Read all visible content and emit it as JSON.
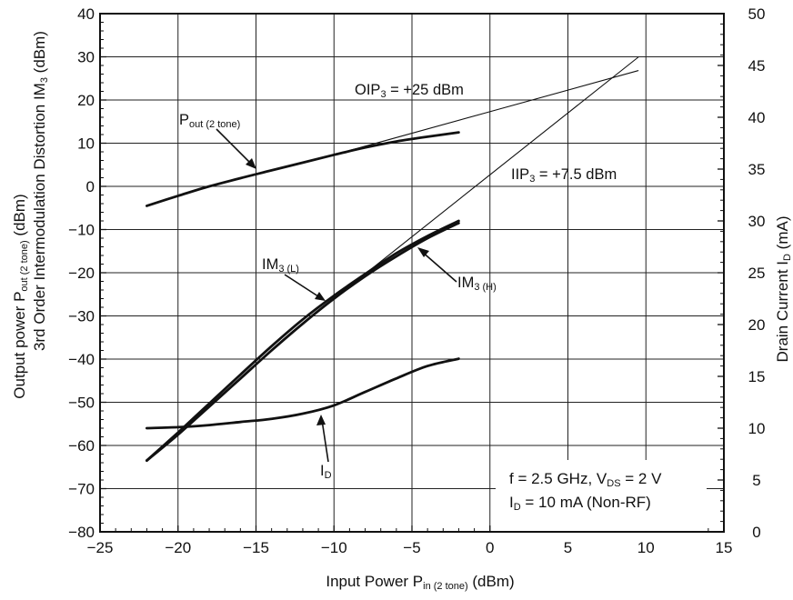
{
  "chart_data": {
    "type": "line",
    "x_axis": {
      "label_main": "Input Power  P",
      "label_sub": "in (2 tone)",
      "label_unit": " (dBm)",
      "range": [
        -25,
        15
      ],
      "ticks": [
        -25,
        -20,
        -15,
        -10,
        -5,
        0,
        5,
        10,
        15
      ],
      "tick_labels": [
        "−25",
        "−20",
        "−15",
        "−10",
        "−5",
        "0",
        "5",
        "10",
        "15"
      ]
    },
    "y_axis_left": {
      "label_line1_main": "Output power  P",
      "label_line1_sub": "out (2 tone)",
      "label_line1_unit": " (dBm)",
      "label_line2_main": "3rd Order Intermodulation Distortion  IM",
      "label_line2_sub": "3",
      "label_line2_unit": " (dBm)",
      "range": [
        -80,
        40
      ],
      "ticks": [
        -80,
        -70,
        -60,
        -50,
        -40,
        -30,
        -20,
        -10,
        0,
        10,
        20,
        30,
        40
      ],
      "tick_labels": [
        "−80",
        "−70",
        "−60",
        "−50",
        "−40",
        "−30",
        "−20",
        "−10",
        "0",
        "10",
        "20",
        "30",
        "40"
      ]
    },
    "y_axis_right": {
      "label_main": "Drain Current  I",
      "label_sub": "D",
      "label_unit": " (mA)",
      "range": [
        0,
        50
      ],
      "ticks": [
        0,
        5,
        10,
        15,
        20,
        25,
        30,
        35,
        40,
        45,
        50
      ],
      "tick_labels": [
        "0",
        "5",
        "10",
        "15",
        "20",
        "25",
        "30",
        "35",
        "40",
        "45",
        "50"
      ]
    },
    "grid": true,
    "series": [
      {
        "name": "Pout (2 tone)",
        "axis": "left",
        "style": "thick",
        "x": [
          -22,
          -20,
          -18,
          -16,
          -14,
          -12,
          -10,
          -8,
          -6,
          -4,
          -2
        ],
        "y": [
          -4.5,
          -2.2,
          0,
          1.9,
          3.7,
          5.5,
          7.3,
          9.0,
          10.4,
          11.5,
          12.5
        ]
      },
      {
        "name": "IM3 (L)",
        "axis": "left",
        "style": "thick",
        "x": [
          -22,
          -20,
          -18,
          -16,
          -14,
          -12,
          -10,
          -8,
          -6,
          -4,
          -2
        ],
        "y": [
          -63.5,
          -57.0,
          -50.3,
          -43.6,
          -37.0,
          -30.8,
          -25.3,
          -20.3,
          -15.5,
          -11.5,
          -8.0
        ]
      },
      {
        "name": "IM3 (H)",
        "axis": "left",
        "style": "thick",
        "x": [
          -22,
          -20,
          -18,
          -16,
          -14,
          -12,
          -10,
          -8,
          -6,
          -4,
          -2
        ],
        "y": [
          -63.5,
          -57.5,
          -51.0,
          -44.5,
          -38.0,
          -31.8,
          -26.0,
          -20.8,
          -16.2,
          -12.0,
          -8.5
        ]
      },
      {
        "name": "ID",
        "axis": "right",
        "style": "thick",
        "x": [
          -22,
          -20,
          -18,
          -16,
          -14,
          -12,
          -10,
          -8,
          -6,
          -4,
          -2
        ],
        "y": [
          10.0,
          10.1,
          10.3,
          10.6,
          10.9,
          11.4,
          12.2,
          13.5,
          14.8,
          16.0,
          16.7
        ]
      },
      {
        "name": "OIP3 extrapolation",
        "axis": "left",
        "style": "thin",
        "x": [
          -10,
          9.5
        ],
        "y": [
          7.3,
          26.8
        ]
      },
      {
        "name": "IIP3 extrapolation",
        "axis": "left",
        "style": "thin",
        "x": [
          -10,
          9.5
        ],
        "y": [
          -26.0,
          29.9
        ]
      }
    ],
    "annotations": {
      "oip3": {
        "pre": "OIP",
        "sub": "3",
        "post": " = +25 dBm"
      },
      "iip3": {
        "pre": "IIP",
        "sub": "3",
        "post": " = +7.5 dBm"
      },
      "pout": {
        "pre": "P",
        "sub": "out (2 tone)"
      },
      "im3l": {
        "pre": "IM",
        "sub": "3 (L)"
      },
      "im3h": {
        "pre": "IM",
        "sub": "3 (H)"
      },
      "id": {
        "pre": "I",
        "sub": "D"
      }
    },
    "conditions": {
      "line1_pre": "f = 2.5 GHz, V",
      "line1_sub": "DS",
      "line1_post": " = 2 V",
      "line2_pre": "I",
      "line2_sub": "D",
      "line2_post": " = 10 mA (Non-RF)"
    },
    "colors": {
      "line": "#111111",
      "grid": "#222222",
      "background": "#ffffff"
    }
  }
}
